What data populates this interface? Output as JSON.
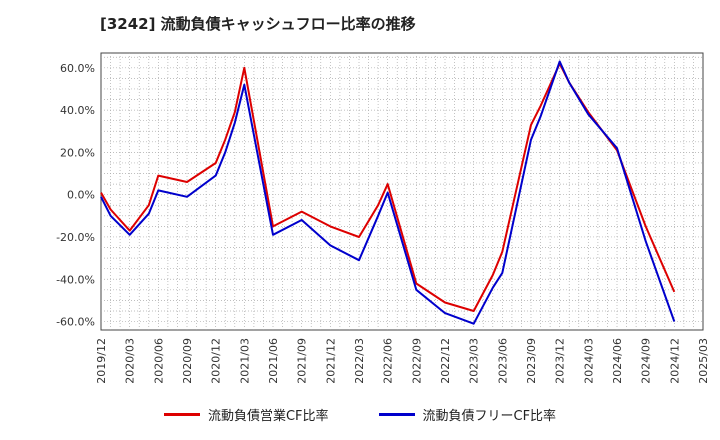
{
  "chart_data": {
    "type": "line",
    "title": "[3242]  流動負債キャッシュフロー比率の推移",
    "xlabel": "",
    "ylabel": "",
    "ylim": [
      -64,
      67
    ],
    "y_ticks": [
      60,
      40,
      20,
      0,
      -20,
      -40,
      -60
    ],
    "y_tick_labels": [
      "60.0%",
      "40.0%",
      "20.0%",
      "0.0%",
      "-20.0%",
      "-40.0%",
      "-60.0%"
    ],
    "x_tick_labels": [
      "2019/12",
      "2020/03",
      "2020/06",
      "2020/09",
      "2020/12",
      "2021/03",
      "2021/06",
      "2021/09",
      "2021/12",
      "2022/03",
      "2022/06",
      "2022/09",
      "2022/12",
      "2023/03",
      "2023/06",
      "2023/09",
      "2023/12",
      "2024/03",
      "2024/06",
      "2024/09",
      "2024/12",
      "2025/03"
    ],
    "grid": true,
    "legend_position": "bottom",
    "series": [
      {
        "name": "流動負債営業CF比率",
        "color": "#dd0000",
        "x": [
          "2019/12",
          "2020/01",
          "2020/03",
          "2020/05",
          "2020/06",
          "2020/09",
          "2020/12",
          "2021/01",
          "2021/02",
          "2021/03",
          "2021/06",
          "2021/09",
          "2021/12",
          "2022/03",
          "2022/05",
          "2022/06",
          "2022/09",
          "2022/12",
          "2023/03",
          "2023/05",
          "2023/06",
          "2023/09",
          "2023/10",
          "2023/12",
          "2024/01",
          "2024/03",
          "2024/06",
          "2024/09",
          "2024/12"
        ],
        "values": [
          1,
          -7,
          -17,
          -5,
          9,
          6,
          15,
          26,
          39,
          60,
          -15,
          -8,
          -15,
          -20,
          -5,
          5,
          -42,
          -51,
          -55,
          -38,
          -27,
          33,
          42,
          62,
          53,
          39,
          21,
          -15,
          -46
        ]
      },
      {
        "name": "流動負債フリーCF比率",
        "color": "#0000cc",
        "x": [
          "2019/12",
          "2020/01",
          "2020/03",
          "2020/05",
          "2020/06",
          "2020/09",
          "2020/12",
          "2021/01",
          "2021/02",
          "2021/03",
          "2021/06",
          "2021/09",
          "2021/12",
          "2022/03",
          "2022/05",
          "2022/06",
          "2022/09",
          "2022/12",
          "2023/03",
          "2023/05",
          "2023/06",
          "2023/09",
          "2023/10",
          "2023/12",
          "2024/01",
          "2024/03",
          "2024/06",
          "2024/09",
          "2024/12"
        ],
        "values": [
          -1,
          -10,
          -19,
          -9,
          2,
          -1,
          9,
          20,
          34,
          52,
          -19,
          -12,
          -24,
          -31,
          -10,
          1,
          -45,
          -56,
          -61,
          -44,
          -37,
          26,
          37,
          63,
          53,
          38,
          22,
          -22,
          -60
        ]
      }
    ]
  }
}
